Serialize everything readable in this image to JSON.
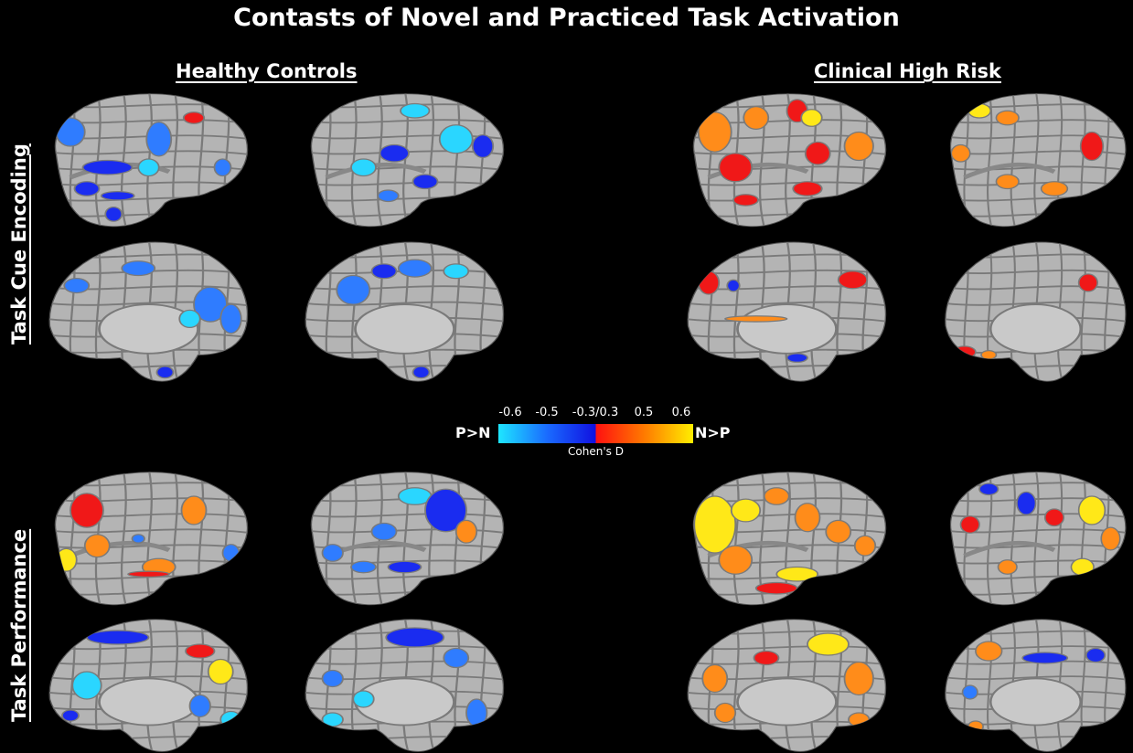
{
  "title": "Contasts of Novel and Practiced Task Activation",
  "groups": [
    "Healthy Controls",
    "Clinical High Risk"
  ],
  "rows": [
    "Task Cue Encoding",
    "Task Performance"
  ],
  "colorbar": {
    "ticks": [
      "-0.6",
      "-0.5",
      "-0.3/0.3",
      "0.5",
      "0.6"
    ],
    "left_label": "P>N",
    "right_label": "N>P",
    "title": "Cohen's D",
    "negative_colors": [
      "#1ee6ff",
      "#1a6bff",
      "#1010e0"
    ],
    "positive_colors": [
      "#ff1010",
      "#ff7a00",
      "#ffee00"
    ]
  },
  "colors": {
    "background": "#000000",
    "cortex": "#b4b4b4",
    "parcel_border": "#7a7a7a",
    "light_blue": "#2ad6ff",
    "mid_blue": "#2f7cff",
    "dark_blue": "#1a2cf0",
    "red": "#f01818",
    "orange": "#ff8c1a",
    "yellow": "#ffe818"
  }
}
